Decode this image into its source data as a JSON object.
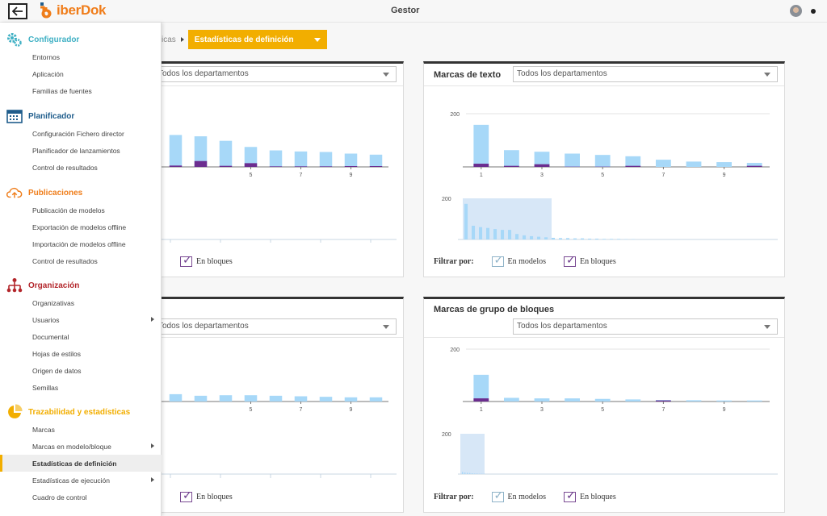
{
  "header": {
    "brand": "iberDok",
    "app_title": "Gestor"
  },
  "breadcrumb": {
    "previous": "icas",
    "current": "Estadísticas de definición"
  },
  "sidebar": {
    "sections": [
      {
        "title": "Configurador",
        "color": "#3fb0c4",
        "icon": "gears-icon",
        "items": [
          {
            "label": "Entornos"
          },
          {
            "label": "Aplicación"
          },
          {
            "label": "Familias de fuentes"
          }
        ]
      },
      {
        "title": "Planificador",
        "color": "#1f5d8c",
        "icon": "calendar-icon",
        "items": [
          {
            "label": "Configuración Fichero director"
          },
          {
            "label": "Planificador de lanzamientos"
          },
          {
            "label": "Control de resultados"
          }
        ]
      },
      {
        "title": "Publicaciones",
        "color": "#ef7d1a",
        "icon": "cloud-upload-icon",
        "items": [
          {
            "label": "Publicación de modelos"
          },
          {
            "label": "Exportación de modelos offline"
          },
          {
            "label": "Importación de modelos offline"
          },
          {
            "label": "Control de resultados"
          }
        ]
      },
      {
        "title": "Organización",
        "color": "#b3262b",
        "icon": "org-chart-icon",
        "items": [
          {
            "label": "Organizativas"
          },
          {
            "label": "Usuarios",
            "submenu": true
          },
          {
            "label": "Documental"
          },
          {
            "label": "Hojas de estilos"
          },
          {
            "label": "Origen de datos"
          },
          {
            "label": "Semillas"
          }
        ]
      },
      {
        "title": "Trazabilidad y estadísticas",
        "color": "#f2ae00",
        "icon": "pie-chart-icon",
        "items": [
          {
            "label": "Marcas"
          },
          {
            "label": "Marcas en modelo/bloque",
            "submenu": true
          },
          {
            "label": "Estadísticas de definición",
            "active": true
          },
          {
            "label": "Estadísticas de ejecución",
            "submenu": true
          },
          {
            "label": "Cuadro de control"
          }
        ]
      }
    ]
  },
  "panels": {
    "top_left": {
      "title": "",
      "select": "Todos los departamentos",
      "filter_blocks": "En bloques"
    },
    "top_right": {
      "title": "Marcas de texto",
      "select": "Todos los departamentos",
      "filter_label": "Filtrar por:",
      "filter_models": "En modelos",
      "filter_blocks": "En bloques"
    },
    "bottom_left": {
      "title": "",
      "select": "Todos los departamentos",
      "filter_blocks": "En bloques"
    },
    "bottom_right": {
      "title": "Marcas de grupo de bloques",
      "select": "Todos los departamentos",
      "filter_label": "Filtrar por:",
      "filter_models": "En modelos",
      "filter_blocks": "En bloques"
    }
  },
  "chart_data": [
    {
      "type": "bar",
      "panel": "top_left",
      "title": "",
      "ymax": 200,
      "categories": [
        "1",
        "2",
        "3",
        "4",
        "5",
        "6",
        "7",
        "8",
        "9",
        "10"
      ],
      "x_tick_labels": [
        "5",
        "7",
        "9"
      ],
      "series": [
        {
          "name": "En modelos",
          "values": [
            0,
            120,
            115,
            98,
            75,
            62,
            58,
            56,
            50,
            46
          ],
          "color": "#a7d8f8"
        },
        {
          "name": "En bloques",
          "values": [
            0,
            5,
            22,
            4,
            14,
            2,
            2,
            2,
            3,
            3
          ],
          "color": "#6b2d8f"
        }
      ]
    },
    {
      "type": "bar",
      "panel": "top_right",
      "title": "Marcas de texto",
      "ymax": 200,
      "categories": [
        "1",
        "2",
        "3",
        "4",
        "5",
        "6",
        "7",
        "8",
        "9",
        "10"
      ],
      "y_tick_labels": [
        "200"
      ],
      "x_tick_labels": [
        "1",
        "3",
        "5",
        "7",
        "9"
      ],
      "series": [
        {
          "name": "En modelos",
          "values": [
            158,
            63,
            57,
            50,
            45,
            40,
            27,
            20,
            18,
            15
          ],
          "color": "#a7d8f8"
        },
        {
          "name": "En bloques",
          "values": [
            12,
            4,
            10,
            1,
            1,
            4,
            0,
            0,
            0,
            4
          ],
          "color": "#6b2d8f"
        }
      ],
      "overview": {
        "y_tick_label": "200",
        "values": [
          130,
          50,
          45,
          42,
          38,
          35,
          35,
          20,
          15,
          12,
          10,
          8,
          6,
          5,
          5,
          4,
          4,
          3,
          3,
          2,
          2,
          2,
          1,
          1
        ]
      }
    },
    {
      "type": "bar",
      "panel": "bottom_left",
      "title": "",
      "ymax": 200,
      "categories": [
        "1",
        "2",
        "3",
        "4",
        "5",
        "6",
        "7",
        "8",
        "9",
        "10"
      ],
      "x_tick_labels": [
        "5",
        "7",
        "9"
      ],
      "series": [
        {
          "name": "En modelos",
          "values": [
            0,
            28,
            22,
            24,
            24,
            22,
            20,
            18,
            16,
            16
          ],
          "color": "#a7d8f8"
        },
        {
          "name": "En bloques",
          "values": [
            0,
            0,
            0,
            0,
            0,
            0,
            0,
            0,
            0,
            0
          ],
          "color": "#6b2d8f"
        }
      ]
    },
    {
      "type": "bar",
      "panel": "bottom_right",
      "title": "Marcas de grupo de bloques",
      "ymax": 200,
      "categories": [
        "1",
        "2",
        "3",
        "4",
        "5",
        "6",
        "7",
        "8",
        "9",
        "10"
      ],
      "y_tick_labels": [
        "200"
      ],
      "x_tick_labels": [
        "1",
        "3",
        "5",
        "7",
        "9"
      ],
      "series": [
        {
          "name": "En modelos",
          "values": [
            102,
            14,
            12,
            12,
            10,
            8,
            6,
            5,
            4,
            4
          ],
          "color": "#a7d8f8"
        },
        {
          "name": "En bloques",
          "values": [
            12,
            0,
            0,
            0,
            0,
            0,
            4,
            0,
            0,
            0
          ],
          "color": "#6b2d8f"
        }
      ],
      "overview": {
        "y_tick_label": "200",
        "values": [
          8,
          6,
          5,
          4,
          3,
          2,
          2,
          1,
          1,
          1
        ]
      }
    }
  ]
}
